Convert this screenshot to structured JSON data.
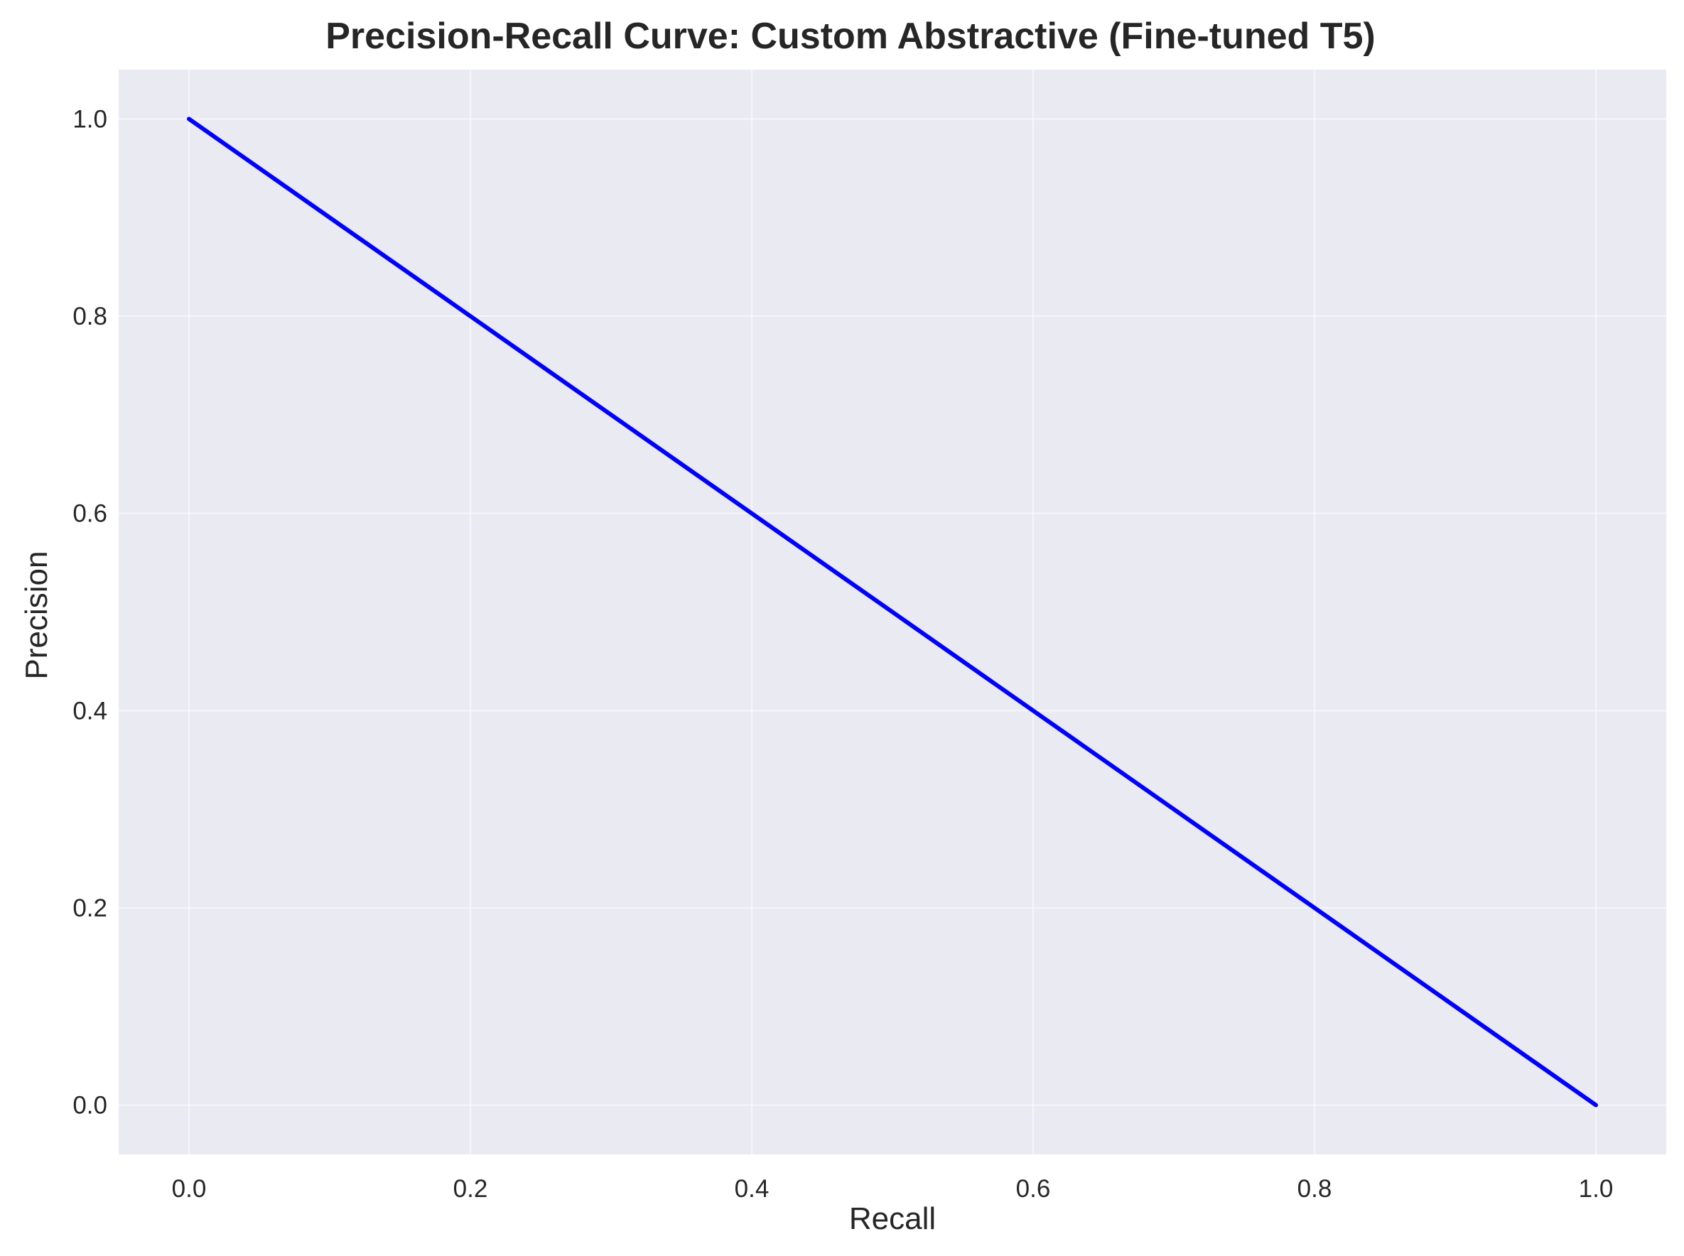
{
  "chart_data": {
    "type": "line",
    "title": "Precision-Recall Curve: Custom Abstractive (Fine-tuned T5)",
    "xlabel": "Recall",
    "ylabel": "Precision",
    "xlim": [
      -0.05,
      1.05
    ],
    "ylim": [
      -0.05,
      1.05
    ],
    "x_ticks": [
      0.0,
      0.2,
      0.4,
      0.6,
      0.8,
      1.0
    ],
    "y_ticks": [
      0.0,
      0.2,
      0.4,
      0.6,
      0.8,
      1.0
    ],
    "x_tick_labels": [
      "0.0",
      "0.2",
      "0.4",
      "0.6",
      "0.8",
      "1.0"
    ],
    "y_tick_labels": [
      "0.0",
      "0.2",
      "0.4",
      "0.6",
      "0.8",
      "1.0"
    ],
    "grid": true,
    "legend": "none",
    "series": [
      {
        "x": [
          0.0,
          1.0
        ],
        "y": [
          1.0,
          0.0
        ],
        "color": "#0000ff"
      }
    ],
    "colors": {
      "plot_background": "#eaeaf2",
      "grid": "#ffffff",
      "text": "#262626"
    }
  }
}
